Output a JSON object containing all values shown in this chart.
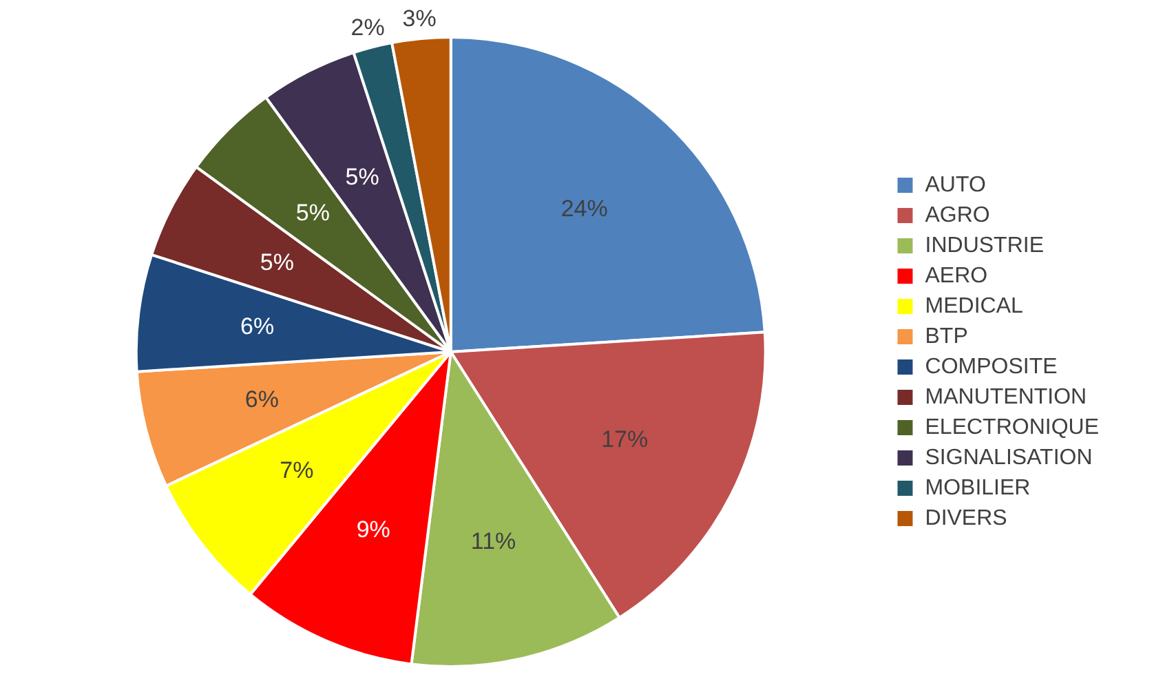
{
  "chart_data": {
    "type": "pie",
    "categories": [
      "AUTO",
      "AGRO",
      "INDUSTRIE",
      "AERO",
      "MEDICAL",
      "BTP",
      "COMPOSITE",
      "MANUTENTION",
      "ELECTRONIQUE",
      "SIGNALISATION",
      "MOBILIER",
      "DIVERS"
    ],
    "values": [
      24,
      17,
      11,
      9,
      7,
      6,
      6,
      5,
      5,
      5,
      2,
      3
    ],
    "value_labels": [
      "24%",
      "17%",
      "11%",
      "9%",
      "7%",
      "6%",
      "6%",
      "5%",
      "5%",
      "5%",
      "2%",
      "3%"
    ],
    "colors": [
      "#4f81bd",
      "#c0504d",
      "#9bbb59",
      "#ff0000",
      "#ffff00",
      "#f79646",
      "#1f497d",
      "#772c2a",
      "#4f6228",
      "#3f3151",
      "#215968",
      "#b65708"
    ],
    "legend": "right"
  }
}
